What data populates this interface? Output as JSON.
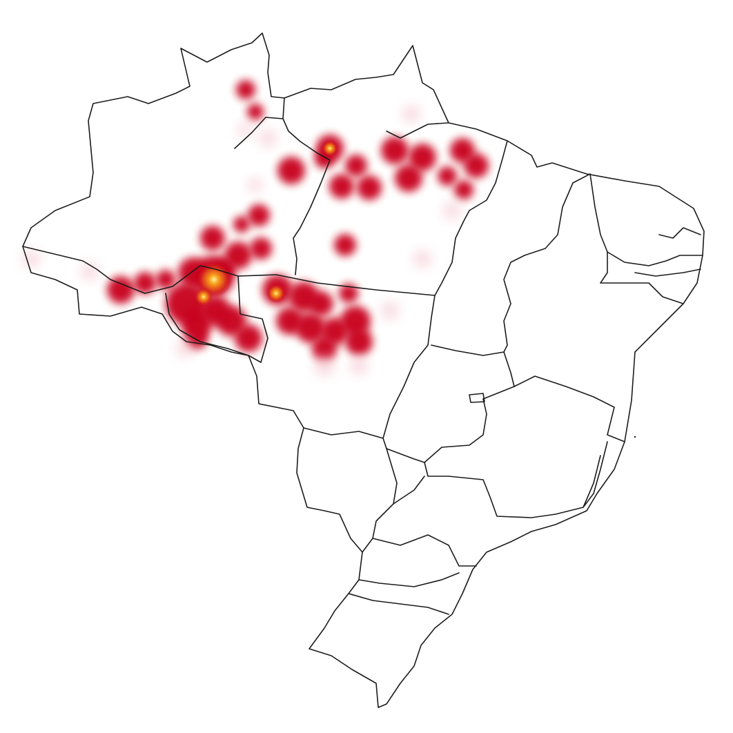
{
  "map": {
    "country": "Brazil",
    "layer": "heatmap",
    "colors": {
      "background": "#ffffff",
      "outline": "#1a1a1a",
      "heat_low": "#f4c2cc",
      "heat_mid": "#c8001e",
      "heat_high": "#f7a11c",
      "heat_peak": "#fff3a0"
    }
  }
}
